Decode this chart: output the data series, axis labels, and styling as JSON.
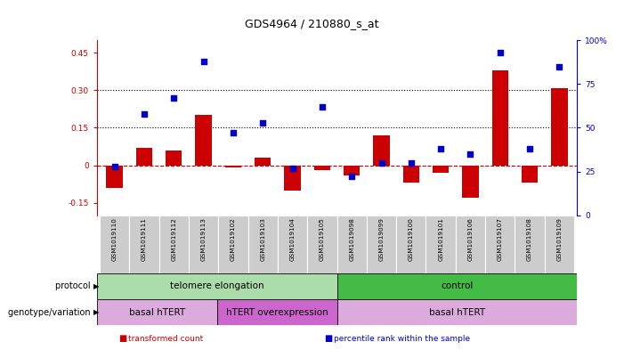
{
  "title": "GDS4964 / 210880_s_at",
  "samples": [
    "GSM1019110",
    "GSM1019111",
    "GSM1019112",
    "GSM1019113",
    "GSM1019102",
    "GSM1019103",
    "GSM1019104",
    "GSM1019105",
    "GSM1019098",
    "GSM1019099",
    "GSM1019100",
    "GSM1019101",
    "GSM1019106",
    "GSM1019107",
    "GSM1019108",
    "GSM1019109"
  ],
  "bar_values": [
    -0.09,
    0.07,
    0.06,
    0.2,
    -0.01,
    0.03,
    -0.1,
    -0.02,
    -0.04,
    0.12,
    -0.07,
    -0.03,
    -0.13,
    0.38,
    -0.07,
    0.31
  ],
  "blue_values": [
    28,
    58,
    67,
    88,
    47,
    53,
    27,
    62,
    22,
    30,
    30,
    38,
    35,
    93,
    38,
    85
  ],
  "bar_color": "#cc0000",
  "blue_color": "#0000cc",
  "dashed_line_color": "#cc0000",
  "dotted_line_color": "#000000",
  "ylim_left": [
    -0.2,
    0.5
  ],
  "ylim_right": [
    0,
    100
  ],
  "yticks_left": [
    -0.15,
    0.0,
    0.15,
    0.3,
    0.45
  ],
  "ytick_labels_left": [
    "-0.15",
    "0",
    "0.15",
    "0.30",
    "0.45"
  ],
  "yticks_right": [
    0,
    25,
    50,
    75,
    100
  ],
  "ytick_labels_right": [
    "0",
    "25",
    "50",
    "75",
    "100%"
  ],
  "dotted_lines": [
    0.3,
    0.15
  ],
  "protocol_groups": [
    {
      "label": "telomere elongation",
      "start": 0,
      "end": 8,
      "color": "#aaddaa"
    },
    {
      "label": "control",
      "start": 8,
      "end": 16,
      "color": "#44bb44"
    }
  ],
  "genotype_groups": [
    {
      "label": "basal hTERT",
      "start": 0,
      "end": 4,
      "color": "#ddaadd"
    },
    {
      "label": "hTERT overexpression",
      "start": 4,
      "end": 8,
      "color": "#cc66cc"
    },
    {
      "label": "basal hTERT",
      "start": 8,
      "end": 16,
      "color": "#ddaadd"
    }
  ],
  "legend_red_label": "transformed count",
  "legend_blue_label": "percentile rank within the sample",
  "protocol_label": "protocol",
  "genotype_label": "genotype/variation",
  "background_color": "#ffffff",
  "tick_bg_color": "#cccccc",
  "cell_edge_color": "#ffffff"
}
